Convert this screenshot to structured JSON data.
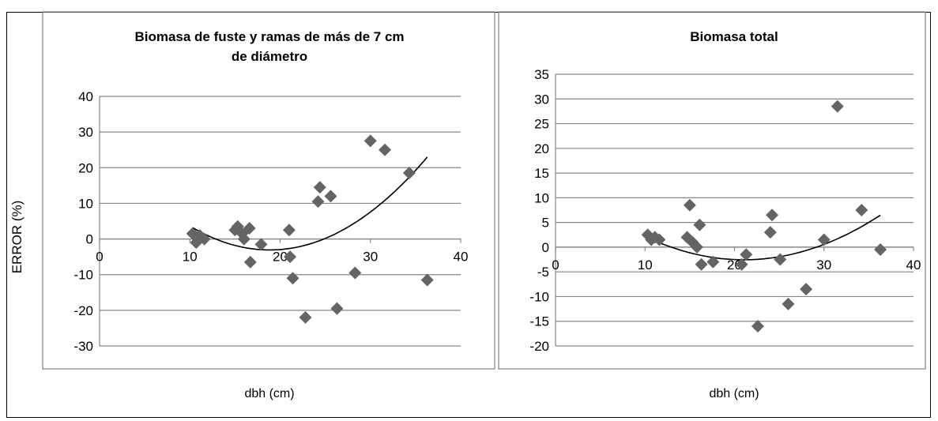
{
  "shared": {
    "ylabel": "ERROR (%)",
    "xlabel": "dbh (cm)",
    "marker_color": "#646464",
    "curve_color": "#000000",
    "grid_color": "#868686"
  },
  "chart_data": [
    {
      "type": "scatter",
      "title": "Biomasa de fuste y ramas de más de 7 cm de diámetro",
      "title_lines": [
        "Biomasa de fuste y ramas de más de 7 cm",
        "de diámetro"
      ],
      "xlabel": "dbh (cm)",
      "ylabel": "ERROR (%)",
      "xlim": [
        0,
        40
      ],
      "ylim": [
        -30,
        40
      ],
      "x_ticks": [
        "0",
        "10",
        "20",
        "30",
        "40"
      ],
      "y_ticks": [
        "-30",
        "-20",
        "-10",
        "0",
        "10",
        "20",
        "30",
        "40"
      ],
      "grid": "horizontal",
      "legend": "none",
      "series": [
        {
          "x": [
            10.3,
            10.7,
            11.1,
            11.6,
            15.0,
            15.3,
            15.8,
            16.0,
            16.6,
            16.7,
            17.9,
            21.0,
            21.1,
            21.4,
            22.8,
            24.2,
            24.4,
            25.6,
            26.3,
            28.3,
            30.0,
            31.6,
            34.3,
            36.3
          ],
          "y": [
            1.5,
            -1.0,
            1.0,
            0.0,
            2.5,
            3.5,
            1.5,
            0.0,
            3.0,
            -6.5,
            -1.5,
            2.5,
            -5.0,
            -11.0,
            -22.0,
            10.5,
            14.5,
            12.0,
            -19.5,
            -9.5,
            27.5,
            25.0,
            18.5,
            -11.5
          ]
        }
      ],
      "trendline": {
        "type": "polynomial",
        "degree": 2,
        "x_range": [
          10.3,
          36.3
        ],
        "coefficients": [
          27.33,
          -3.226,
          0.08557
        ]
      }
    },
    {
      "type": "scatter",
      "title": "Biomasa total",
      "title_lines": [
        "Biomasa total"
      ],
      "xlabel": "dbh (cm)",
      "ylabel": "",
      "xlim": [
        0,
        40
      ],
      "ylim": [
        -20,
        35
      ],
      "x_ticks": [
        "0",
        "10",
        "20",
        "30",
        "40"
      ],
      "y_ticks": [
        "-20",
        "-15",
        "-10",
        "-5",
        "0",
        "5",
        "10",
        "15",
        "20",
        "25",
        "30",
        "35"
      ],
      "grid": "horizontal",
      "legend": "none",
      "series": [
        {
          "x": [
            10.3,
            10.7,
            11.1,
            11.6,
            14.7,
            15.0,
            15.3,
            15.8,
            16.1,
            16.3,
            17.6,
            20.8,
            21.3,
            22.6,
            24.0,
            24.2,
            25.1,
            26.0,
            28.0,
            30.0,
            31.5,
            34.2,
            36.3
          ],
          "y": [
            2.5,
            1.5,
            2.0,
            1.5,
            2.0,
            8.5,
            1.0,
            0.0,
            4.5,
            -3.5,
            -3.0,
            -3.5,
            -1.5,
            -16.0,
            3.0,
            6.5,
            -2.5,
            -11.5,
            -8.5,
            1.5,
            28.5,
            7.5,
            -0.5
          ]
        }
      ],
      "trendline": {
        "type": "polynomial",
        "degree": 2,
        "x_range": [
          10.3,
          36.3
        ],
        "coefficients": [
          14.64,
          -1.634,
          0.03882
        ]
      }
    }
  ]
}
